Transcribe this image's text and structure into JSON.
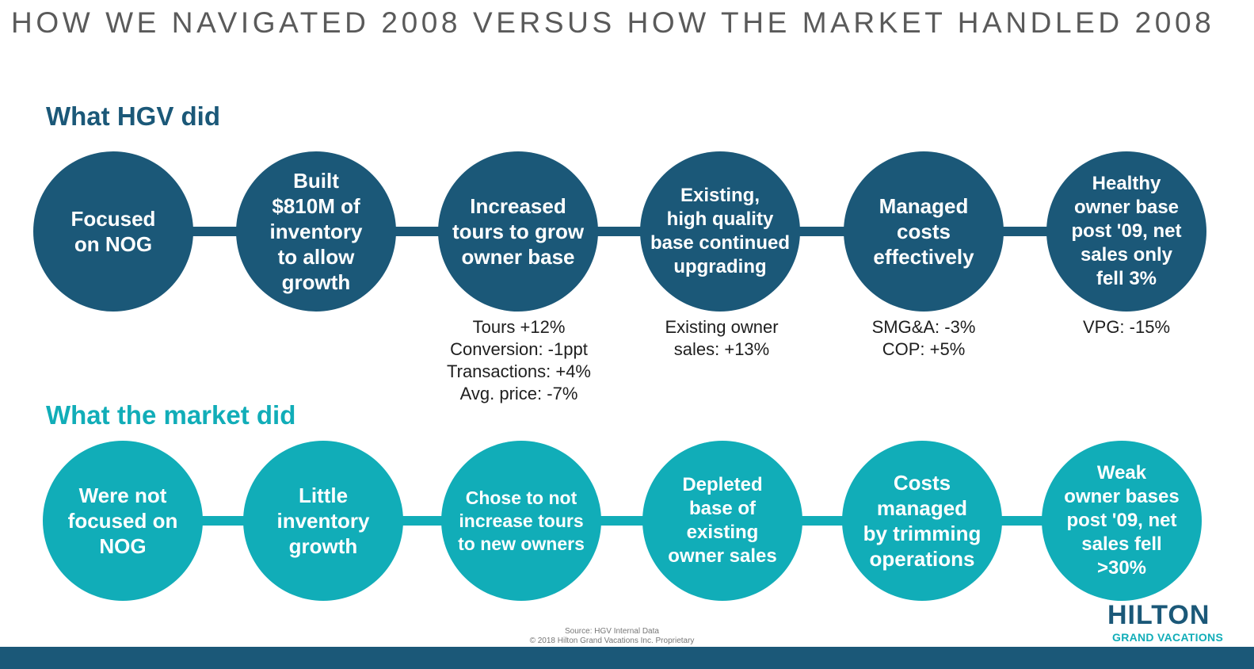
{
  "title": "HOW WE NAVIGATED 2008 VERSUS HOW THE MARKET HANDLED 2008",
  "hgv": {
    "heading": "What HGV did",
    "circles": [
      "Focused\non NOG",
      "Built\n$810M of\ninventory\nto allow\ngrowth",
      "Increased\ntours to grow\nowner base",
      "Existing,\nhigh quality\nbase continued\nupgrading",
      "Managed\ncosts\neffectively",
      "Healthy\nowner base\npost '09, net\nsales only\nfell 3%"
    ],
    "metrics": [
      "Tours +12%\nConversion: -1ppt\nTransactions: +4%\nAvg. price: -7%",
      "Existing owner\nsales: +13%",
      "SMG&A: -3%\nCOP: +5%",
      "VPG: -15%"
    ]
  },
  "market": {
    "heading": "What the market did",
    "circles": [
      "Were not\nfocused on\nNOG",
      "Little\ninventory\ngrowth",
      "Chose to not\nincrease tours\nto new owners",
      "Depleted\nbase of\nexisting\nowner sales",
      "Costs\nmanaged\nby trimming\noperations",
      "Weak\nowner bases\npost '09, net\nsales fell\n>30%"
    ]
  },
  "footer": {
    "source": "Source: HGV Internal Data",
    "copyright": "© 2018 Hilton Grand Vacations Inc. Proprietary"
  },
  "logo": {
    "name": "HILTON",
    "sub": "GRAND VACATIONS"
  },
  "colors": {
    "hgv": "#1b5878",
    "market": "#11adb8"
  }
}
